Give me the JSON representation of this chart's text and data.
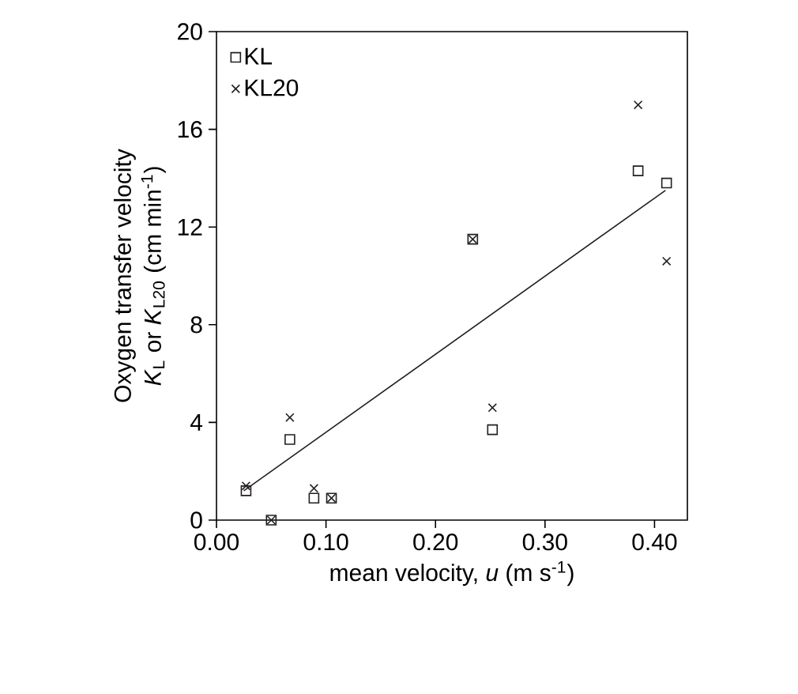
{
  "chart_data": {
    "type": "scatter",
    "xlabel": "mean velocity, *u* (m s$^{-1}$)",
    "ylabel": "Oxygen transfer velocity\n*K*$_{L}$ or *K*$_{L20}$ (cm min$^{-1}$)",
    "series": [
      {
        "name": "KL",
        "color": "#231f20",
        "marker": "square",
        "x": [
          0.027,
          0.05,
          0.089,
          0.105,
          0.234,
          0.252,
          0.067,
          0.385,
          0.411
        ],
        "values": [
          1.2,
          0,
          0.9,
          0.9,
          11.5,
          3.7,
          3.3,
          14.3,
          13.8
        ]
      },
      {
        "name": "KL20",
        "color": "#231f20",
        "marker": "cross",
        "x": [
          0.027,
          0.05,
          0.089,
          0.105,
          0.234,
          0.252,
          0.067,
          0.385,
          0.411
        ],
        "values": [
          1.4,
          0,
          1.3,
          0.9,
          11.5,
          4.6,
          4.2,
          17.0,
          10.6
        ]
      },
      {
        "type": "line",
        "color": "#231f20",
        "marker": "none",
        "x": [
          0.025,
          0.41
        ],
        "values": [
          1.2,
          13.5
        ]
      }
    ],
    "xlim": [
      0,
      0.43
    ],
    "ylim": [
      0,
      20
    ],
    "xticks": [
      {
        "value": 0,
        "label": "0.00"
      },
      {
        "value": 0.1,
        "label": "0.10"
      },
      {
        "value": 0.2,
        "label": "0.20"
      },
      {
        "value": 0.3,
        "label": "0.30"
      },
      {
        "value": 0.4,
        "label": "0.40"
      }
    ],
    "yticks": [
      0,
      4,
      8,
      12,
      16,
      20
    ],
    "legend": "top left",
    "grid": false
  }
}
